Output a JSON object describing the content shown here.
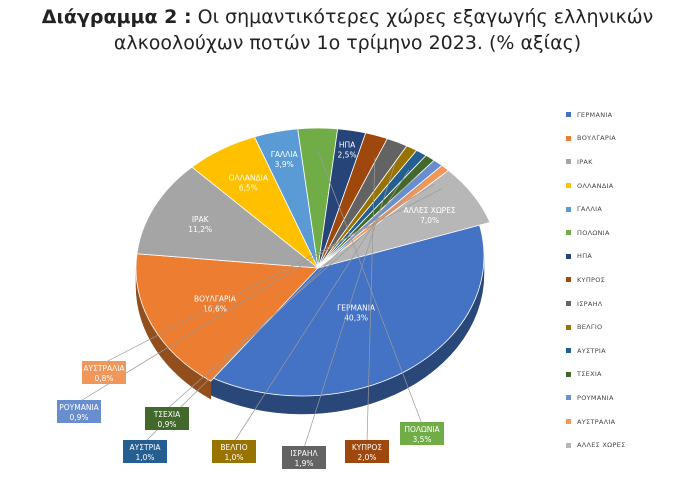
{
  "title": {
    "prefix": "Διάγραμμα 2 :",
    "line1": "Οι σημαντικότερες χώρες εξαγωγής ελληνικών",
    "line2": "αλκοολούχων ποτών 1ο τρίμηνο 2023. (% αξίας)"
  },
  "chart_data": {
    "type": "pie",
    "title": "Διάγραμμα 2 : Οι σημαντικότερες χώρες εξαγωγής ελληνικών αλκοολούχων ποτών 1ο τρίμηνο 2023. (% αξίας)",
    "legend_position": "right",
    "slices": [
      {
        "label": "ΓΕΡΜΑΝΙΑ",
        "value": 40.3,
        "display": "40,3%",
        "color": "#4472C4"
      },
      {
        "label": "ΒΟΥΛΓΑΡΙΑ",
        "value": 16.6,
        "display": "16,6%",
        "color": "#ED7D31"
      },
      {
        "label": "ΙΡΑΚ",
        "value": 11.2,
        "display": "11,2%",
        "color": "#A5A5A5"
      },
      {
        "label": "ΟΛΛΑΝΔΙΑ",
        "value": 6.5,
        "display": "6,5%",
        "color": "#FFC000"
      },
      {
        "label": "ΓΑΛΛΙΑ",
        "value": 3.9,
        "display": "3,9%",
        "color": "#5B9BD5"
      },
      {
        "label": "ΠΟΛΩΝΙΑ",
        "value": 3.5,
        "display": "3,5%",
        "color": "#70AD47"
      },
      {
        "label": "ΗΠΑ",
        "value": 2.5,
        "display": "2,5%",
        "color": "#264478"
      },
      {
        "label": "ΚΥΠΡΟΣ",
        "value": 2.0,
        "display": "2,0%",
        "color": "#9E480E"
      },
      {
        "label": "ΙΣΡΑΗΛ",
        "value": 1.9,
        "display": "1,9%",
        "color": "#636363"
      },
      {
        "label": "ΒΕΛΓΙΟ",
        "value": 1.0,
        "display": "1,0%",
        "color": "#997300"
      },
      {
        "label": "ΑΥΣΤΡΙΑ",
        "value": 1.0,
        "display": "1,0%",
        "color": "#255E91"
      },
      {
        "label": "ΤΣΕΧΙΑ",
        "value": 0.9,
        "display": "0,9%",
        "color": "#43682B"
      },
      {
        "label": "ΡΟΥΜΑΝΙΑ",
        "value": 0.9,
        "display": "0,9%",
        "color": "#698ED0"
      },
      {
        "label": "ΑΥΣΤΡΑΛΙΑ",
        "value": 0.8,
        "display": "0,8%",
        "color": "#F1975A"
      },
      {
        "label": "ΑΛΛΕΣ ΧΩΡΕΣ",
        "value": 7.0,
        "display": "7,0%",
        "color": "#B7B7B7"
      }
    ]
  }
}
